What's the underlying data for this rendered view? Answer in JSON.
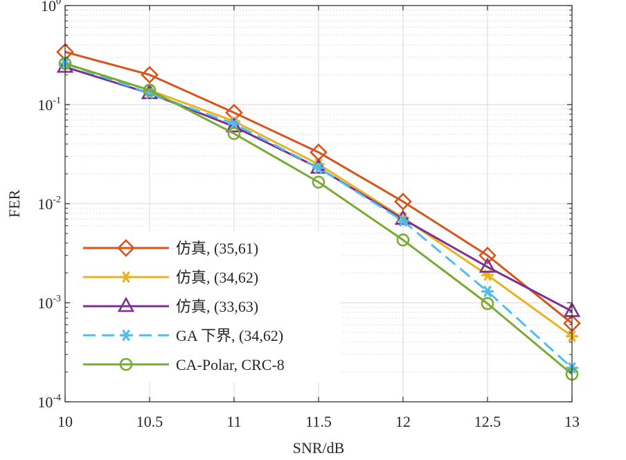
{
  "chart_data": {
    "type": "line",
    "title": "",
    "xlabel": "SNR/dB",
    "ylabel": "FER",
    "x": [
      10,
      10.5,
      11,
      11.5,
      12,
      12.5,
      13
    ],
    "xticks": [
      "10",
      "10.5",
      "11",
      "11.5",
      "12",
      "12.5",
      "13"
    ],
    "xlim": [
      10,
      13
    ],
    "yscale": "log",
    "ylim": [
      0.0001,
      1
    ],
    "yticks": [
      {
        "base": "10",
        "exp": "0"
      },
      {
        "base": "10",
        "exp": "-1"
      },
      {
        "base": "10",
        "exp": "-2"
      },
      {
        "base": "10",
        "exp": "-3"
      },
      {
        "base": "10",
        "exp": "-4"
      }
    ],
    "grid": true,
    "legend_position": "bottom-left",
    "series": [
      {
        "name": "仿真, (35,61)",
        "color": "#D95319",
        "marker": "diamond",
        "dash": "solid",
        "values": [
          0.34,
          0.2,
          0.083,
          0.033,
          0.0105,
          0.003,
          0.00062
        ]
      },
      {
        "name": "仿真, (34,62)",
        "color": "#EDB120",
        "marker": "asterisk",
        "dash": "solid",
        "values": [
          0.26,
          0.14,
          0.068,
          0.025,
          0.0072,
          0.0019,
          0.00046
        ]
      },
      {
        "name": "仿真, (33,63)",
        "color": "#7E2F8E",
        "marker": "triangle",
        "dash": "solid",
        "values": [
          0.24,
          0.13,
          0.06,
          0.023,
          0.007,
          0.0023,
          0.00082
        ]
      },
      {
        "name": "GA 下界, (34,62)",
        "color": "#4DBEEE",
        "marker": "asterisk",
        "dash": "dashed",
        "values": [
          0.26,
          0.13,
          0.064,
          0.023,
          0.0067,
          0.0013,
          0.00022
        ]
      },
      {
        "name": "CA-Polar, CRC-8",
        "color": "#77AC30",
        "marker": "circle",
        "dash": "solid",
        "values": [
          0.26,
          0.14,
          0.051,
          0.0165,
          0.0043,
          0.00098,
          0.00019
        ]
      }
    ]
  }
}
